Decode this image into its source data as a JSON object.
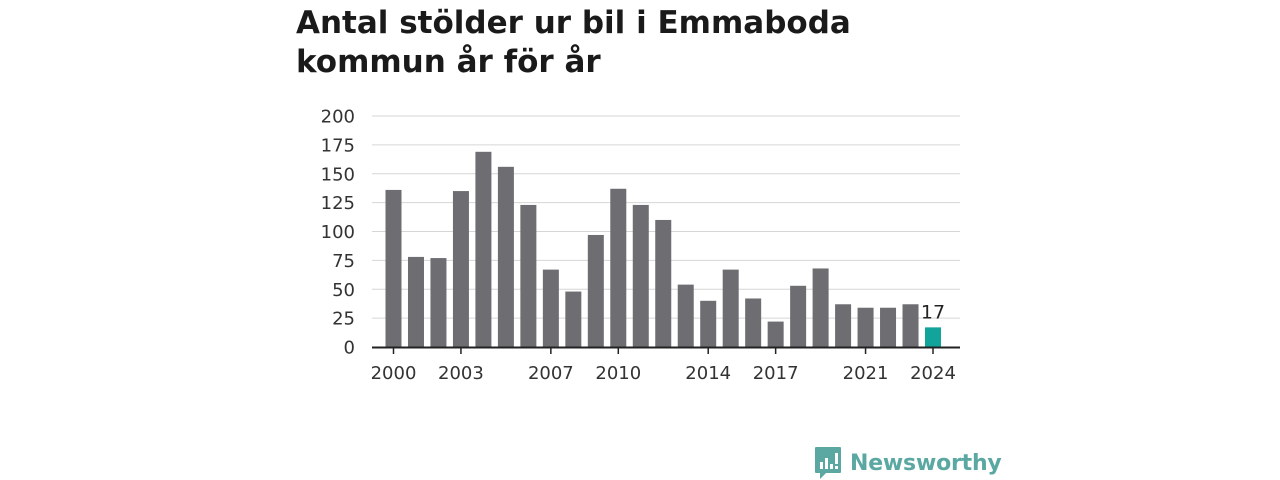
{
  "chart_data": {
    "type": "bar",
    "title": "Antal stölder ur bil i Emmaboda kommun år för år",
    "xlabel": "",
    "ylabel": "",
    "ylim": [
      0,
      200
    ],
    "y_ticks": [
      0,
      25,
      50,
      75,
      100,
      125,
      150,
      175,
      200
    ],
    "x_tick_labels": [
      "2000",
      "2003",
      "2007",
      "2010",
      "2014",
      "2017",
      "2021",
      "2024"
    ],
    "categories": [
      "2000",
      "2001",
      "2002",
      "2003",
      "2004",
      "2005",
      "2006",
      "2007",
      "2008",
      "2009",
      "2010",
      "2011",
      "2012",
      "2013",
      "2014",
      "2015",
      "2016",
      "2017",
      "2018",
      "2019",
      "2020",
      "2021",
      "2022",
      "2023",
      "2024"
    ],
    "values": [
      136,
      78,
      77,
      135,
      169,
      156,
      123,
      67,
      48,
      97,
      137,
      123,
      110,
      54,
      40,
      67,
      42,
      22,
      53,
      68,
      37,
      34,
      34,
      37,
      17
    ],
    "highlight": {
      "category": "2024",
      "label": "17"
    },
    "grid": true,
    "colors": {
      "bar": "#6d6d72",
      "highlight": "#12a39a",
      "grid": "#d6d6d6",
      "axis": "#222222"
    }
  },
  "branding": {
    "logo_text": "Newsworthy",
    "logo_color": "#5aa8a1"
  }
}
